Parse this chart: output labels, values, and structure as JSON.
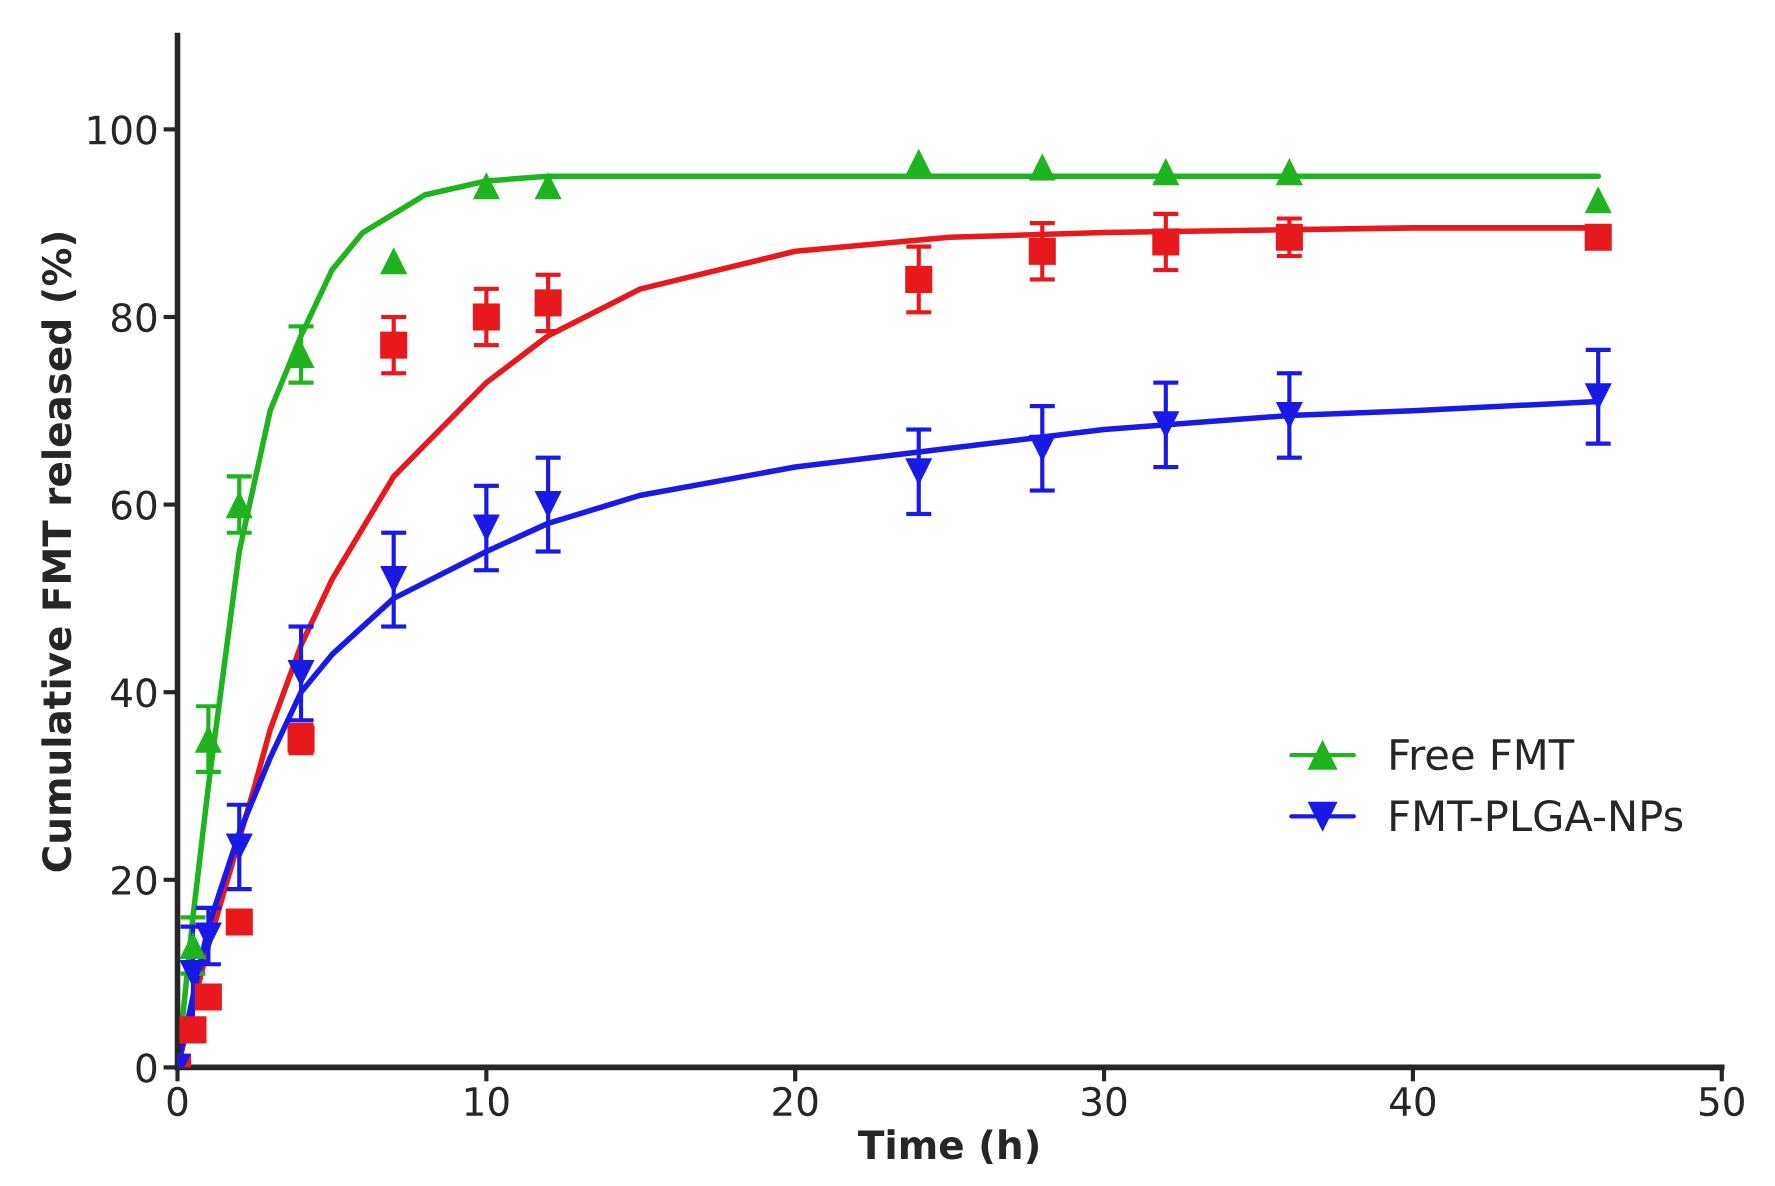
{
  "chart_data": {
    "type": "scatter",
    "xlabel": "Time (h)",
    "ylabel": "Cumulative FMT released (%)",
    "xlim": [
      0,
      50
    ],
    "xticks": [
      0,
      10,
      20,
      30,
      40,
      50
    ],
    "ylim": [
      0,
      110
    ],
    "yticks": [
      0,
      20,
      40,
      60,
      80,
      100
    ],
    "grid": false,
    "legend": "right",
    "series": [
      {
        "marker": "square",
        "color": "#e8191c",
        "x": [
          0,
          0.5,
          1,
          2,
          4,
          7,
          10,
          12,
          24,
          28,
          32,
          36,
          46
        ],
        "values": [
          0,
          4,
          7.5,
          15.5,
          35,
          77,
          80,
          81.5,
          84,
          87,
          88,
          88.5,
          88.5
        ],
        "errors": [
          null,
          null,
          null,
          null,
          1.5,
          3,
          3,
          3,
          3.5,
          3,
          3,
          2,
          1
        ]
      },
      {
        "name": "Free FMT",
        "marker": "triangle",
        "color": "#1fb41f",
        "x": [
          0.5,
          1,
          2,
          4,
          7,
          10,
          12,
          24,
          28,
          32,
          36,
          46
        ],
        "values": [
          13,
          35,
          60,
          76,
          86,
          94,
          94,
          96.5,
          96,
          95.5,
          95.5,
          92.5
        ],
        "errors": [
          3,
          3.5,
          3,
          3,
          null,
          null,
          null,
          null,
          null,
          null,
          null,
          null
        ]
      },
      {
        "name": "FMT-PLGA-NPs",
        "marker": "triangle-down",
        "color": "#1a1ae6",
        "x": [
          0,
          0.5,
          1,
          2,
          4,
          7,
          10,
          12,
          24,
          28,
          32,
          36,
          46
        ],
        "values": [
          0,
          10,
          14,
          23.5,
          42,
          52,
          57.5,
          60,
          63.5,
          66,
          68.5,
          69.5,
          71.5
        ],
        "errors": [
          null,
          5,
          3,
          4.5,
          5,
          5,
          4.5,
          5,
          4.5,
          4.5,
          4.5,
          4.5,
          5
        ]
      },
      {
        "type": "line",
        "marker": "none",
        "color": "#e8191c",
        "x": [
          0,
          1,
          2.5,
          3,
          4,
          5,
          7,
          10,
          12,
          15,
          20,
          25,
          30,
          40,
          46
        ],
        "values": [
          0,
          13,
          30,
          36,
          45,
          52,
          63,
          73,
          78,
          83,
          87,
          88.5,
          89,
          89.5,
          89.5
        ]
      },
      {
        "type": "line",
        "marker": "none",
        "color": "#1fb41f",
        "x": [
          0,
          0.5,
          1,
          2,
          3,
          4,
          5,
          6,
          8,
          10,
          12,
          20,
          46
        ],
        "values": [
          0,
          16,
          30,
          55,
          70,
          78,
          85,
          89,
          93,
          94.5,
          95,
          95,
          95
        ]
      },
      {
        "type": "line",
        "marker": "none",
        "color": "#1a1ae6",
        "x": [
          0,
          1,
          2,
          3,
          4,
          5,
          7,
          10,
          12,
          15,
          20,
          25,
          30,
          36,
          40,
          46
        ],
        "values": [
          0,
          15,
          25,
          33,
          40,
          44,
          50,
          55,
          58,
          61,
          64,
          66,
          68,
          69.5,
          70,
          71
        ]
      }
    ]
  }
}
